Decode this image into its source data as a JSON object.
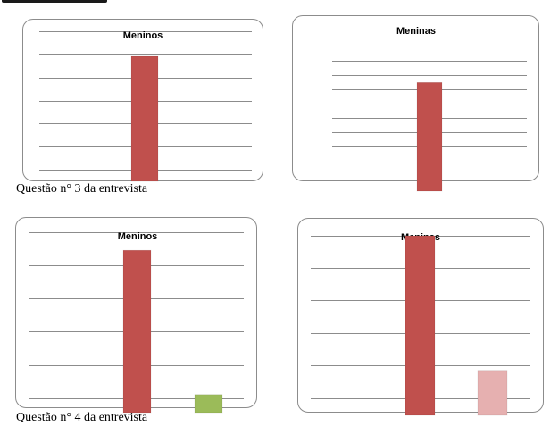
{
  "colors": {
    "bar_primary": "#c0504d",
    "bar_green": "#9bbb59",
    "bar_pink": "#e6b0b0",
    "gridline": "#8c8c8c",
    "card_border": "#8c8c8c"
  },
  "captions": {
    "q3": "Questão n° 3 da entrevista",
    "q4": "Questão n° 4 da entrevista"
  },
  "chart_data": [
    {
      "type": "bar",
      "title": "Meninos",
      "grid": true,
      "ylim": [
        0,
        6
      ],
      "series": [
        {
          "values": [
            5
          ]
        }
      ]
    },
    {
      "type": "bar",
      "title": "Meninas",
      "grid": true,
      "ylim": [
        0,
        6
      ],
      "series": [
        {
          "values": [
            5
          ]
        }
      ]
    },
    {
      "type": "bar",
      "title": "Meninos",
      "grid": true,
      "ylim": [
        0,
        5
      ],
      "series": [
        {
          "values": [
            4.5,
            0.5
          ]
        }
      ]
    },
    {
      "type": "bar",
      "title": "Meninas",
      "grid": true,
      "ylim": [
        0,
        4
      ],
      "series": [
        {
          "values": [
            4,
            1
          ]
        }
      ]
    }
  ]
}
